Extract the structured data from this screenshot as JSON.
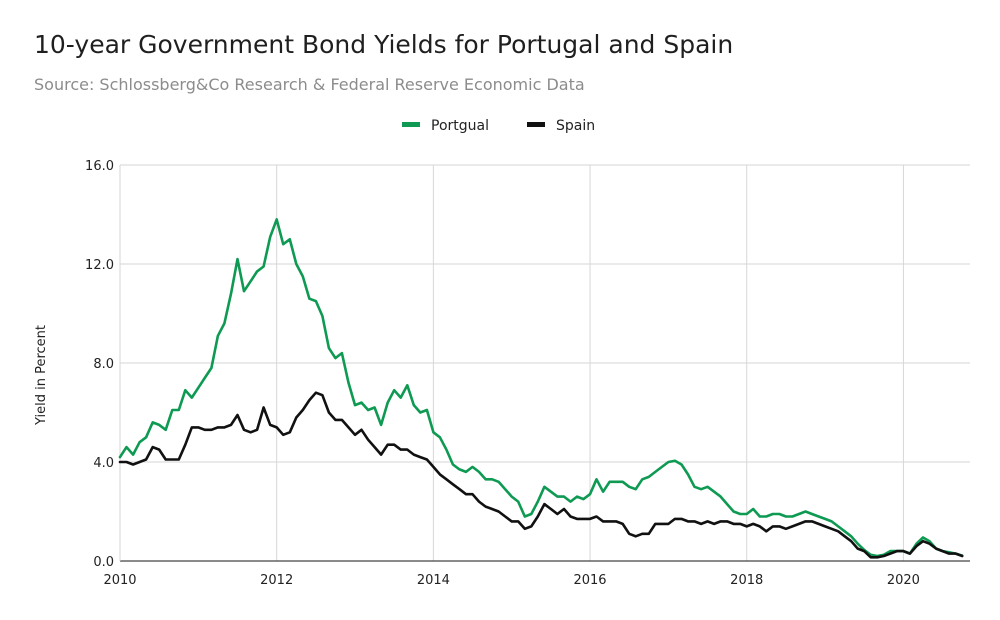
{
  "chart_data": {
    "type": "line",
    "title": "10-year Government Bond Yields for Portugal and Spain",
    "subtitle": "Source: Schlossberg&Co Research & Federal Reserve Economic Data",
    "xlabel": "",
    "ylabel": "Yield in Percent",
    "xlim": [
      2010.0,
      2020.85
    ],
    "ylim": [
      0,
      16
    ],
    "xticks": [
      2010,
      2012,
      2014,
      2016,
      2018,
      2020
    ],
    "xtick_labels": [
      "2010",
      "2012",
      "2014",
      "2016",
      "2018",
      "2020"
    ],
    "yticks": [
      0,
      4,
      8,
      12,
      16
    ],
    "ytick_labels": [
      "0.0",
      "4.0",
      "8.0",
      "12.0",
      "16.0"
    ],
    "grid": true,
    "legend_position": "top-center",
    "series": [
      {
        "name": "Portgual",
        "color": "#0e9a52",
        "x": [
          2010.0,
          2010.083,
          2010.167,
          2010.25,
          2010.333,
          2010.417,
          2010.5,
          2010.583,
          2010.667,
          2010.75,
          2010.833,
          2010.917,
          2011.0,
          2011.083,
          2011.167,
          2011.25,
          2011.333,
          2011.417,
          2011.5,
          2011.583,
          2011.667,
          2011.75,
          2011.833,
          2011.917,
          2012.0,
          2012.083,
          2012.167,
          2012.25,
          2012.333,
          2012.417,
          2012.5,
          2012.583,
          2012.667,
          2012.75,
          2012.833,
          2012.917,
          2013.0,
          2013.083,
          2013.167,
          2013.25,
          2013.333,
          2013.417,
          2013.5,
          2013.583,
          2013.667,
          2013.75,
          2013.833,
          2013.917,
          2014.0,
          2014.083,
          2014.167,
          2014.25,
          2014.333,
          2014.417,
          2014.5,
          2014.583,
          2014.667,
          2014.75,
          2014.833,
          2014.917,
          2015.0,
          2015.083,
          2015.167,
          2015.25,
          2015.333,
          2015.417,
          2015.5,
          2015.583,
          2015.667,
          2015.75,
          2015.833,
          2015.917,
          2016.0,
          2016.083,
          2016.167,
          2016.25,
          2016.333,
          2016.417,
          2016.5,
          2016.583,
          2016.667,
          2016.75,
          2016.833,
          2016.917,
          2017.0,
          2017.083,
          2017.167,
          2017.25,
          2017.333,
          2017.417,
          2017.5,
          2017.583,
          2017.667,
          2017.75,
          2017.833,
          2017.917,
          2018.0,
          2018.083,
          2018.167,
          2018.25,
          2018.333,
          2018.417,
          2018.5,
          2018.583,
          2018.667,
          2018.75,
          2018.833,
          2018.917,
          2019.0,
          2019.083,
          2019.167,
          2019.25,
          2019.333,
          2019.417,
          2019.5,
          2019.583,
          2019.667,
          2019.75,
          2019.833,
          2019.917,
          2020.0,
          2020.083,
          2020.167,
          2020.25,
          2020.333,
          2020.417,
          2020.5,
          2020.583,
          2020.667,
          2020.75
        ],
        "y": [
          4.2,
          4.6,
          4.3,
          4.8,
          5.0,
          5.6,
          5.5,
          5.3,
          6.1,
          6.1,
          6.9,
          6.6,
          7.0,
          7.4,
          7.8,
          9.1,
          9.6,
          10.8,
          12.2,
          10.9,
          11.3,
          11.7,
          11.9,
          13.1,
          13.8,
          12.8,
          13.0,
          12.0,
          11.5,
          10.6,
          10.5,
          9.9,
          8.6,
          8.2,
          8.4,
          7.2,
          6.3,
          6.4,
          6.1,
          6.2,
          5.5,
          6.4,
          6.9,
          6.6,
          7.1,
          6.3,
          6.0,
          6.1,
          5.2,
          5.0,
          4.5,
          3.9,
          3.7,
          3.6,
          3.8,
          3.6,
          3.3,
          3.3,
          3.2,
          2.9,
          2.6,
          2.4,
          1.8,
          1.9,
          2.4,
          3.0,
          2.8,
          2.6,
          2.6,
          2.4,
          2.6,
          2.5,
          2.7,
          3.3,
          2.8,
          3.2,
          3.2,
          3.2,
          3.0,
          2.9,
          3.3,
          3.4,
          3.6,
          3.8,
          4.0,
          4.05,
          3.9,
          3.5,
          3.0,
          2.9,
          3.0,
          2.8,
          2.6,
          2.3,
          2.0,
          1.9,
          1.9,
          2.1,
          1.8,
          1.8,
          1.9,
          1.9,
          1.8,
          1.8,
          1.9,
          2.0,
          1.9,
          1.8,
          1.7,
          1.6,
          1.4,
          1.2,
          1.0,
          0.7,
          0.45,
          0.25,
          0.2,
          0.25,
          0.4,
          0.4,
          0.4,
          0.3,
          0.7,
          0.95,
          0.8,
          0.5,
          0.4,
          0.35,
          0.3,
          0.22
        ]
      },
      {
        "name": "Spain",
        "color": "#111111",
        "x": [
          2010.0,
          2010.083,
          2010.167,
          2010.25,
          2010.333,
          2010.417,
          2010.5,
          2010.583,
          2010.667,
          2010.75,
          2010.833,
          2010.917,
          2011.0,
          2011.083,
          2011.167,
          2011.25,
          2011.333,
          2011.417,
          2011.5,
          2011.583,
          2011.667,
          2011.75,
          2011.833,
          2011.917,
          2012.0,
          2012.083,
          2012.167,
          2012.25,
          2012.333,
          2012.417,
          2012.5,
          2012.583,
          2012.667,
          2012.75,
          2012.833,
          2012.917,
          2013.0,
          2013.083,
          2013.167,
          2013.25,
          2013.333,
          2013.417,
          2013.5,
          2013.583,
          2013.667,
          2013.75,
          2013.833,
          2013.917,
          2014.0,
          2014.083,
          2014.167,
          2014.25,
          2014.333,
          2014.417,
          2014.5,
          2014.583,
          2014.667,
          2014.75,
          2014.833,
          2014.917,
          2015.0,
          2015.083,
          2015.167,
          2015.25,
          2015.333,
          2015.417,
          2015.5,
          2015.583,
          2015.667,
          2015.75,
          2015.833,
          2015.917,
          2016.0,
          2016.083,
          2016.167,
          2016.25,
          2016.333,
          2016.417,
          2016.5,
          2016.583,
          2016.667,
          2016.75,
          2016.833,
          2016.917,
          2017.0,
          2017.083,
          2017.167,
          2017.25,
          2017.333,
          2017.417,
          2017.5,
          2017.583,
          2017.667,
          2017.75,
          2017.833,
          2017.917,
          2018.0,
          2018.083,
          2018.167,
          2018.25,
          2018.333,
          2018.417,
          2018.5,
          2018.583,
          2018.667,
          2018.75,
          2018.833,
          2018.917,
          2019.0,
          2019.083,
          2019.167,
          2019.25,
          2019.333,
          2019.417,
          2019.5,
          2019.583,
          2019.667,
          2019.75,
          2019.833,
          2019.917,
          2020.0,
          2020.083,
          2020.167,
          2020.25,
          2020.333,
          2020.417,
          2020.5,
          2020.583,
          2020.667,
          2020.75
        ],
        "y": [
          4.0,
          4.0,
          3.9,
          4.0,
          4.1,
          4.6,
          4.5,
          4.1,
          4.1,
          4.1,
          4.7,
          5.4,
          5.4,
          5.3,
          5.3,
          5.4,
          5.4,
          5.5,
          5.9,
          5.3,
          5.2,
          5.3,
          6.2,
          5.5,
          5.4,
          5.1,
          5.2,
          5.8,
          6.1,
          6.5,
          6.8,
          6.7,
          6.0,
          5.7,
          5.7,
          5.4,
          5.1,
          5.3,
          4.9,
          4.6,
          4.3,
          4.7,
          4.7,
          4.5,
          4.5,
          4.3,
          4.2,
          4.1,
          3.8,
          3.5,
          3.3,
          3.1,
          2.9,
          2.7,
          2.7,
          2.4,
          2.2,
          2.1,
          2.0,
          1.8,
          1.6,
          1.6,
          1.3,
          1.4,
          1.8,
          2.3,
          2.1,
          1.9,
          2.1,
          1.8,
          1.7,
          1.7,
          1.7,
          1.8,
          1.6,
          1.6,
          1.6,
          1.5,
          1.1,
          1.0,
          1.1,
          1.1,
          1.5,
          1.5,
          1.5,
          1.7,
          1.7,
          1.6,
          1.6,
          1.5,
          1.6,
          1.5,
          1.6,
          1.6,
          1.5,
          1.5,
          1.4,
          1.5,
          1.4,
          1.2,
          1.4,
          1.4,
          1.3,
          1.4,
          1.5,
          1.6,
          1.6,
          1.5,
          1.4,
          1.3,
          1.2,
          1.0,
          0.8,
          0.5,
          0.4,
          0.15,
          0.15,
          0.2,
          0.3,
          0.4,
          0.4,
          0.3,
          0.6,
          0.8,
          0.7,
          0.5,
          0.4,
          0.3,
          0.3,
          0.2
        ]
      }
    ]
  }
}
